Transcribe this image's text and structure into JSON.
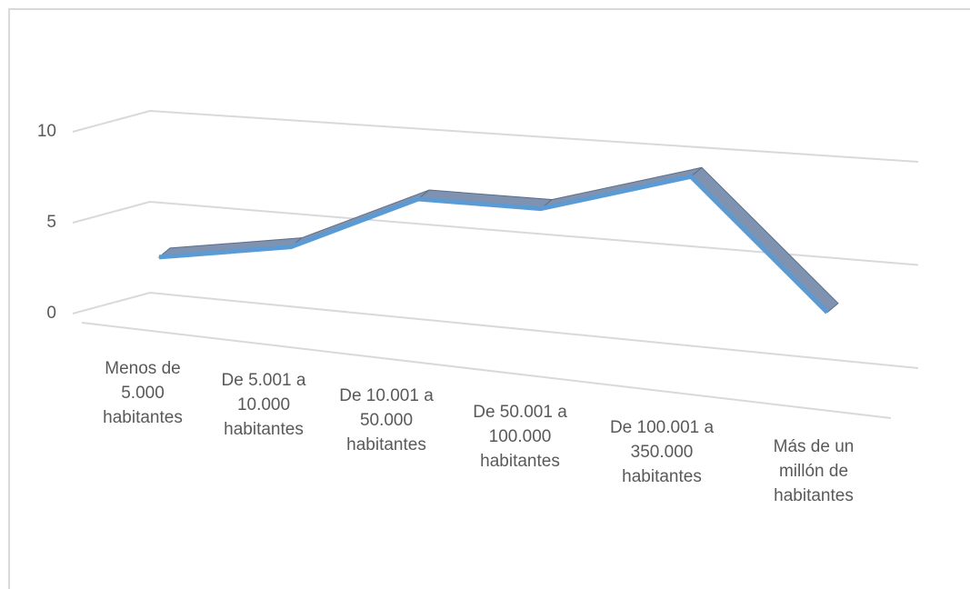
{
  "chart_data": {
    "type": "line",
    "categories": [
      "Menos de 5.000 habitantes",
      "De 5.001 a 10.000 habitantes",
      "De 10.001 a 50.000 habitantes",
      "De 50.001 a 100.000 habitantes",
      "De 100.001 a 350.000 habitantes",
      "Más de un millón de habitantes"
    ],
    "values": [
      2,
      3.2,
      6.3,
      6.3,
      8.5,
      2.3
    ],
    "color": "#5b9bd5",
    "ylim": [
      0,
      10
    ],
    "yticks": [
      0,
      5,
      10
    ],
    "grid": true
  }
}
